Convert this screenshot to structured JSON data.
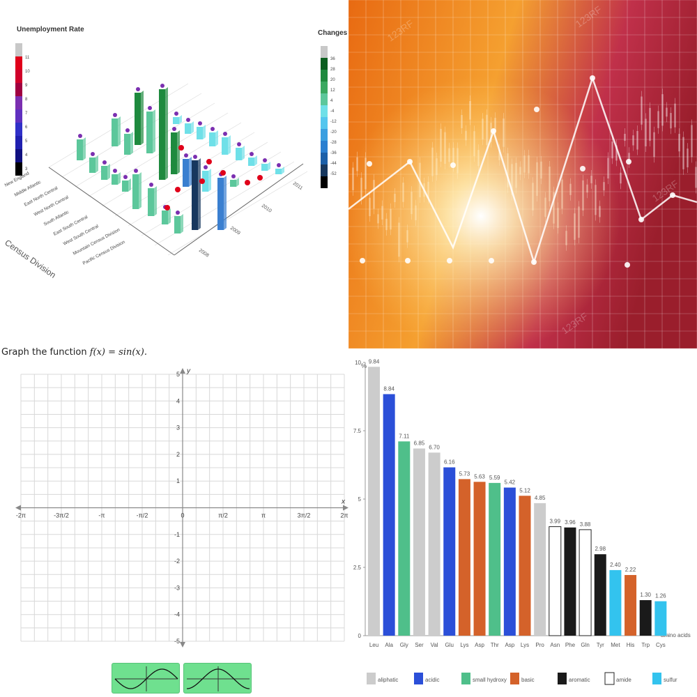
{
  "panel1": {
    "title": "Unemployment Rate",
    "title2": "Changes",
    "left_colorbar_ticks": [
      "11",
      "10",
      "9",
      "8",
      "7",
      "6",
      "5",
      "4",
      "3"
    ],
    "right_colorbar_ticks": [
      "36",
      "28",
      "20",
      "12",
      "4",
      "-4",
      "-12",
      "-20",
      "-28",
      "-36",
      "-44",
      "-52"
    ],
    "axis_label": "Census Division",
    "divisions": [
      "New England",
      "Middle Atlantic",
      "East North Central",
      "West North Central",
      "South Atlantic",
      "East South Central",
      "West South Central",
      "Mountain Census Division",
      "Pacific Census Division"
    ],
    "years": [
      "2008",
      "2009",
      "2010",
      "2011"
    ],
    "colors": {
      "green": "#1e8a3e",
      "light_green": "#5cc79b",
      "cyan": "#6fe0e8",
      "blue": "#3a7fd0",
      "navy": "#17375e",
      "red": "#e0001a",
      "purple": "#7b2fb0"
    }
  },
  "panel2": {
    "watermark": "123RF"
  },
  "panel3": {
    "prompt_prefix": "Graph the function ",
    "prompt_func": "f(x) = sin(x).",
    "x_axis_name": "x",
    "y_axis_name": "y",
    "x_tick_labels": [
      "-2π",
      "-3π/2",
      "-π",
      "-π/2",
      "0",
      "π/2",
      "π",
      "3π/2",
      "2π"
    ],
    "y_tick_labels": [
      "5",
      "4",
      "3",
      "2",
      "1",
      "-1",
      "-2",
      "-3",
      "-4",
      "-5"
    ],
    "answer_a_label": "sin graph option",
    "answer_b_label": "cos graph option"
  },
  "chart_data": [
    {
      "type": "bar",
      "ylabel": "%",
      "ylim": [
        0,
        10
      ],
      "y_ticks": [
        "0",
        "2.5",
        "5",
        "7.5",
        "10"
      ],
      "y_tick_values": [
        0,
        2.5,
        5,
        7.5,
        10
      ],
      "xlabel": "amino acids",
      "categories": [
        "Leu",
        "Ala",
        "Gly",
        "Ser",
        "Val",
        "Glu",
        "Lys",
        "Asp",
        "Thr",
        "Asp",
        "Lys",
        "Pro",
        "Asn",
        "Phe",
        "Gln",
        "Tyr",
        "Met",
        "His",
        "Trp",
        "Cys"
      ],
      "values": [
        9.84,
        8.84,
        7.11,
        6.85,
        6.7,
        6.16,
        5.73,
        5.63,
        5.59,
        5.42,
        5.12,
        4.85,
        3.99,
        3.96,
        3.88,
        2.98,
        2.4,
        2.22,
        1.3,
        1.26
      ],
      "value_labels": [
        "9.84",
        "8.84",
        "7.11",
        "6.85",
        "6.70",
        "6.16",
        "5.73",
        "5.63",
        "5.59",
        "5.42",
        "5.12",
        "4.85",
        "3.99",
        "3.96",
        "3.88",
        "2.98",
        "2.40",
        "2.22",
        "1.30",
        "1.26"
      ],
      "groups": [
        "aliphatic",
        "acidic",
        "small hydroxy",
        "aliphatic",
        "aliphatic",
        "acidic",
        "basic",
        "basic",
        "small hydroxy",
        "acidic",
        "basic",
        "aliphatic",
        "amide",
        "aromatic",
        "amide",
        "aromatic",
        "sulfur",
        "basic",
        "aromatic",
        "sulfur"
      ],
      "legend": [
        {
          "name": "aliphatic",
          "color": "#cccccc"
        },
        {
          "name": "acidic",
          "color": "#2b4fd8"
        },
        {
          "name": "small hydroxy",
          "color": "#4fbf8a"
        },
        {
          "name": "basic",
          "color": "#d4622a"
        },
        {
          "name": "aromatic",
          "color": "#1a1a1a"
        },
        {
          "name": "amide",
          "color": "#ffffff"
        },
        {
          "name": "sulfur",
          "color": "#33c3ee"
        }
      ],
      "legend_position": "bottom"
    }
  ]
}
